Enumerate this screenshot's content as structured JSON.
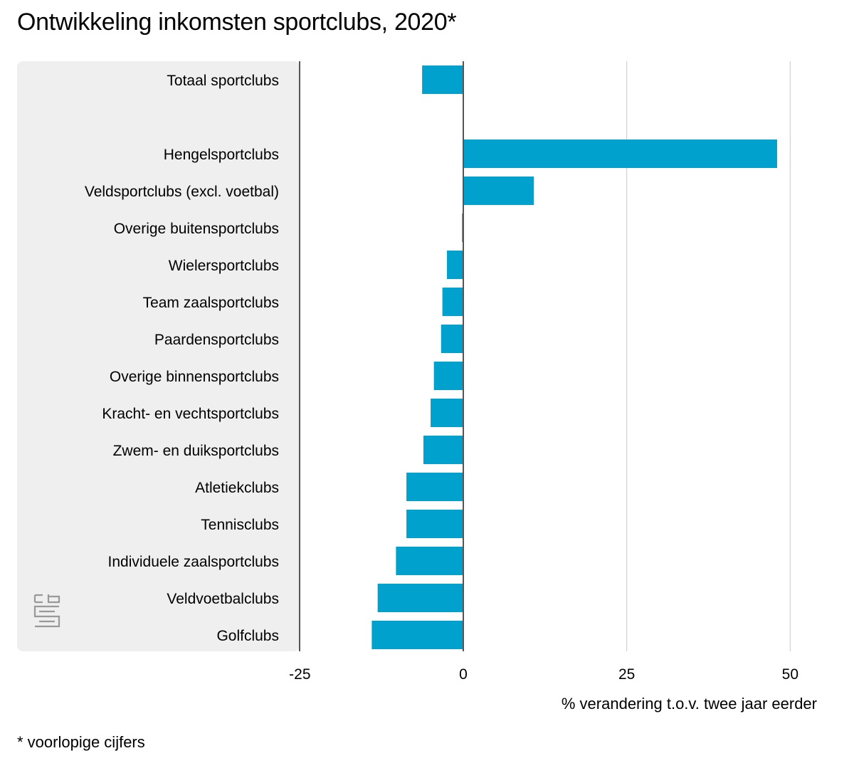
{
  "title": "Ontwikkeling inkomsten sportclubs, 2020*",
  "footnote": "* voorlopige cijfers",
  "colors": {
    "bar": "#00a1cd",
    "label_panel": "#efefef",
    "grid": "#c8c8c8",
    "axis": "#555555",
    "logo": "#999999"
  },
  "logo_icon": "cbs-logo-icon",
  "chart_data": {
    "type": "bar",
    "orientation": "horizontal",
    "categories": [
      "Totaal sportclubs",
      "",
      "Hengelsportclubs",
      "Veldsportclubs (excl. voetbal)",
      "Overige buitensportclubs",
      "Wielersportclubs",
      "Team zaalsportclubs",
      "Paardensportclubs",
      "Overige binnensportclubs",
      "Kracht- en vechtsportclubs",
      "Zwem- en duiksportclubs",
      "Atletiekclubs",
      "Tennisclubs",
      "Individuele zaalsportclubs",
      "Veldvoetbalclubs",
      "Golfclubs"
    ],
    "values": [
      -6.3,
      null,
      48.0,
      10.8,
      -0.2,
      -2.5,
      -3.2,
      -3.4,
      -4.5,
      -5.0,
      -6.1,
      -8.7,
      -8.7,
      -10.3,
      -13.1,
      -14.0
    ],
    "xlim": [
      -25,
      50
    ],
    "xticks": [
      -25,
      0,
      25,
      50
    ],
    "xtick_labels": [
      "-25",
      "0",
      "25",
      "50"
    ],
    "xlabel": "% verandering t.o.v. twee jaar eerder",
    "grid": true,
    "legend": "none"
  }
}
